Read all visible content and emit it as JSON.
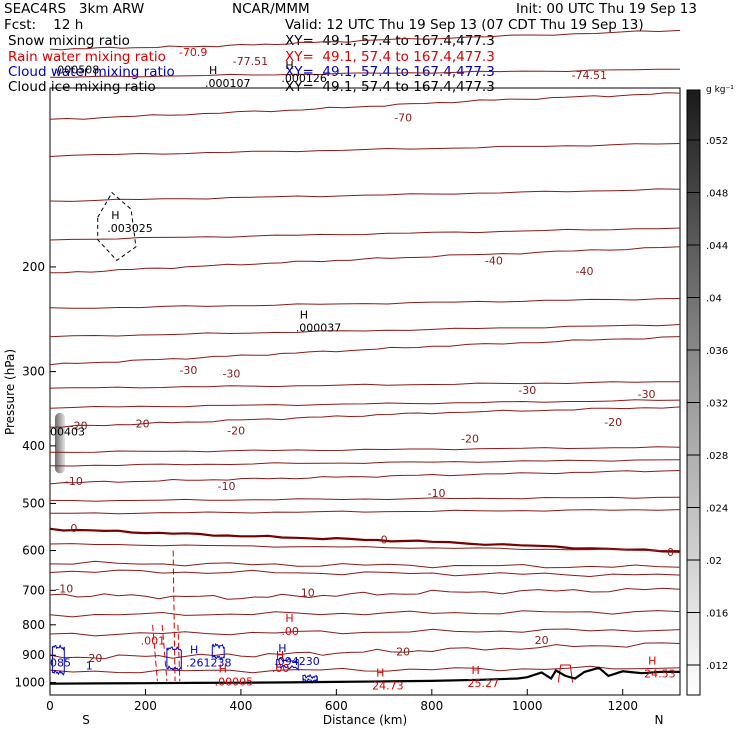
{
  "header": {
    "model": "SEAC4RS   3km ARW",
    "org": "NCAR/MMM",
    "init": "Init: 00 UTC Thu 19 Sep 13",
    "fcst": "Fcst:    12 h",
    "valid": "Valid: 12 UTC Thu 19 Sep 13 (07 CDT Thu 19 Sep 13)",
    "fields": [
      {
        "name": "Snow mixing ratio",
        "xy": "XY=  49.1, 57.4 to 167.4,477.3",
        "color": "#000000"
      },
      {
        "name": "Rain water mixing ratio",
        "xy": "XY=  49.1, 57.4 to 167.4,477.3",
        "color": "#dd0000"
      },
      {
        "name": "Cloud water mixing ratio",
        "xy": "XY=  49.1, 57.4 to 167.4,477.3",
        "color": "#0000cc"
      },
      {
        "name": "Cloud ice mixing ratio",
        "xy": "XY=  49.1, 57.4 to 167.4,477.3",
        "color": "#000000"
      }
    ]
  },
  "chart_data": {
    "type": "line",
    "xlabel": "Distance (km)",
    "ylabel": "Pressure (hPa)",
    "xlim": [
      0,
      1320
    ],
    "ylim": [
      1050,
      100
    ],
    "y_scale": "log",
    "x_ticks": [
      0,
      200,
      400,
      600,
      800,
      1000,
      1200
    ],
    "y_ticks": [
      200,
      300,
      400,
      500,
      600,
      700,
      800,
      900,
      1000
    ],
    "ends": {
      "left": "S",
      "right": "N"
    },
    "colorbar": {
      "unit": "g kg⁻¹",
      "ticks": [
        ".052",
        ".048",
        ".044",
        ".04",
        ".036",
        ".032",
        ".028",
        ".024",
        ".02",
        ".016",
        ".012"
      ]
    },
    "isotherms": [
      {
        "label": "-77.5",
        "points": [
          [
            0,
            86
          ],
          [
            350,
            85
          ],
          [
            700,
            83
          ],
          [
            1320,
            80
          ]
        ]
      },
      {
        "label": "-70",
        "points": [
          [
            0,
            113
          ],
          [
            500,
            109
          ],
          [
            900,
            105
          ],
          [
            1320,
            102
          ]
        ]
      },
      {
        "label": "-40",
        "points": [
          [
            0,
            205
          ],
          [
            400,
            198
          ],
          [
            800,
            192
          ],
          [
            1320,
            185
          ]
        ]
      },
      {
        "label": "-30",
        "points": [
          [
            0,
            292
          ],
          [
            400,
            282
          ],
          [
            800,
            272
          ],
          [
            1320,
            262
          ]
        ]
      },
      {
        "label": "-20",
        "points": [
          [
            0,
            372
          ],
          [
            400,
            362
          ],
          [
            800,
            352
          ],
          [
            1320,
            344
          ]
        ]
      },
      {
        "label": "-10",
        "points": [
          [
            0,
            462
          ],
          [
            400,
            455
          ],
          [
            800,
            448
          ],
          [
            1320,
            440
          ]
        ]
      },
      {
        "label": "0",
        "points": [
          [
            0,
            552
          ],
          [
            400,
            567
          ],
          [
            800,
            580
          ],
          [
            1320,
            603
          ]
        ]
      },
      {
        "label": "10",
        "points": [
          [
            0,
            712
          ],
          [
            400,
            720
          ],
          [
            800,
            706
          ],
          [
            1320,
            697
          ]
        ]
      },
      {
        "label": "20",
        "points": [
          [
            0,
            908
          ],
          [
            400,
            900
          ],
          [
            800,
            883
          ],
          [
            1320,
            860
          ]
        ]
      }
    ],
    "contour_labels": [
      {
        "text": "-77.51",
        "x": 420,
        "y": 90
      },
      {
        "text": "-74.51",
        "x": 1130,
        "y": 95
      },
      {
        "text": "-70",
        "x": 740,
        "y": 112
      },
      {
        "text": "-40",
        "x": 930,
        "y": 195
      },
      {
        "text": "-40",
        "x": 1120,
        "y": 203
      },
      {
        "text": "-30",
        "x": 290,
        "y": 298
      },
      {
        "text": "-30",
        "x": 380,
        "y": 302
      },
      {
        "text": "-30",
        "x": 1000,
        "y": 322
      },
      {
        "text": "-30",
        "x": 1250,
        "y": 327
      },
      {
        "text": "-20",
        "x": 60,
        "y": 370
      },
      {
        "text": "-20",
        "x": 190,
        "y": 367
      },
      {
        "text": "-20",
        "x": 390,
        "y": 377
      },
      {
        "text": "-20",
        "x": 880,
        "y": 389
      },
      {
        "text": "-20",
        "x": 1180,
        "y": 365
      },
      {
        "text": "-10",
        "x": 50,
        "y": 458
      },
      {
        "text": "-10",
        "x": 370,
        "y": 467
      },
      {
        "text": "-10",
        "x": 810,
        "y": 480
      },
      {
        "text": "0",
        "x": 50,
        "y": 550
      },
      {
        "text": "0",
        "x": 700,
        "y": 575
      },
      {
        "text": "0",
        "x": 1300,
        "y": 603
      },
      {
        "text": "-10",
        "x": 30,
        "y": 695
      },
      {
        "text": "10",
        "x": 540,
        "y": 706
      },
      {
        "text": "20",
        "x": 95,
        "y": 910
      },
      {
        "text": "20",
        "x": 740,
        "y": 888
      },
      {
        "text": "20",
        "x": 1030,
        "y": 848
      }
    ],
    "maxima": [
      {
        "mark": "H",
        "value": ".000107",
        "x": 350,
        "y": 97,
        "color": "#000000"
      },
      {
        "mark": "H",
        "value": ".000126",
        "x": 510,
        "y": 95,
        "color": "#000000"
      },
      {
        "mark": "H",
        "value": ".003025",
        "x": 145,
        "y": 170,
        "color": "#000000"
      },
      {
        "mark": "H",
        "value": ".000037",
        "x": 540,
        "y": 250,
        "color": "#000000"
      },
      {
        "mark": "H",
        "value": ".00",
        "x": 510,
        "y": 810,
        "color": "#dd0000"
      },
      {
        "mark": "",
        "value": ".001",
        "x": 215,
        "y": 840,
        "color": "#dd0000"
      },
      {
        "mark": "H",
        "value": ".00005",
        "x": 370,
        "y": 985,
        "color": "#dd0000"
      },
      {
        "mark": "H",
        "value": ".261238",
        "x": 310,
        "y": 915,
        "color": "#0000cc"
      },
      {
        "mark": "H",
        "value": ".094230",
        "x": 495,
        "y": 910,
        "color": "#0000cc"
      },
      {
        "mark": "H",
        "value": ".00",
        "x": 490,
        "y": 935,
        "color": "#dd0000"
      },
      {
        "mark": "H",
        "value": "24.73",
        "x": 700,
        "y": 1000,
        "color": "#dd0000"
      },
      {
        "mark": "H",
        "value": "25.27",
        "x": 900,
        "y": 990,
        "color": "#dd0000"
      },
      {
        "mark": "H",
        "value": "24.53",
        "x": 1270,
        "y": 955,
        "color": "#dd0000"
      }
    ],
    "edge_labels": [
      {
        "text": ".000508",
        "x": 8,
        "y": 93,
        "color": "#000000"
      },
      {
        "text": "00403",
        "x": 0,
        "y": 378,
        "color": "#000000"
      },
      {
        "text": "085",
        "x": 0,
        "y": 925,
        "color": "#0000cc"
      },
      {
        "text": "1",
        "x": 75,
        "y": 937,
        "color": "#0000cc"
      },
      {
        "text": "-70.9",
        "x": 270,
        "y": 87,
        "color": "#dd0000"
      }
    ],
    "terrain": [
      [
        0,
        1005
      ],
      [
        100,
        1004
      ],
      [
        200,
        1003
      ],
      [
        300,
        1002
      ],
      [
        400,
        1001
      ],
      [
        500,
        1000
      ],
      [
        600,
        998
      ],
      [
        700,
        996
      ],
      [
        800,
        994
      ],
      [
        900,
        990
      ],
      [
        980,
        985
      ],
      [
        1000,
        980
      ],
      [
        1030,
        962
      ],
      [
        1050,
        985
      ],
      [
        1060,
        955
      ],
      [
        1080,
        975
      ],
      [
        1100,
        985
      ],
      [
        1120,
        960
      ],
      [
        1150,
        945
      ],
      [
        1170,
        975
      ],
      [
        1200,
        958
      ],
      [
        1240,
        965
      ],
      [
        1280,
        960
      ],
      [
        1320,
        960
      ]
    ]
  },
  "colors": {
    "isotherm": "#8b1a1a",
    "zero_isotherm": "#7a0000",
    "rain": "#dd0000",
    "cloud_water": "#0000cc",
    "terrain": "#000000"
  }
}
